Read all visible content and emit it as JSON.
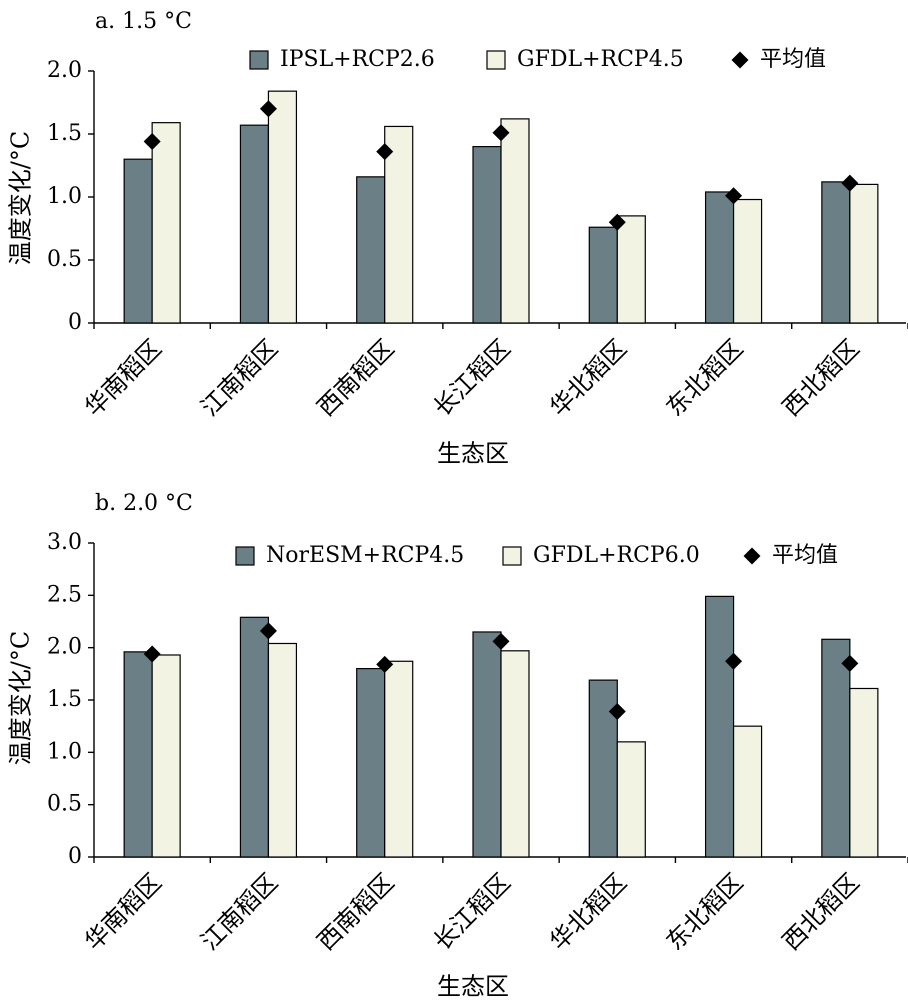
{
  "chart_data": [
    {
      "type": "bar",
      "title": "a. 1.5 °C",
      "xlabel": "生态区",
      "ylabel": "温度变化/°C",
      "ylim": [
        0,
        2.0
      ],
      "yticks": [
        0,
        0.5,
        1.0,
        1.5,
        2.0
      ],
      "ytick_labels": [
        "0",
        "0.5",
        "1.0",
        "1.5",
        "2.0"
      ],
      "categories": [
        "华南稻区",
        "江南稻区",
        "西南稻区",
        "长江稻区",
        "华北稻区",
        "东北稻区",
        "西北稻区"
      ],
      "series": [
        {
          "name": "IPSL+RCP2.6",
          "kind": "bar",
          "color": "#6b7f87",
          "values": [
            1.3,
            1.57,
            1.16,
            1.4,
            0.76,
            1.04,
            1.12
          ]
        },
        {
          "name": "GFDL+RCP4.5",
          "kind": "bar",
          "color": "#f2f3e2",
          "values": [
            1.59,
            1.84,
            1.56,
            1.62,
            0.85,
            0.98,
            1.1
          ]
        },
        {
          "name": "平均值",
          "kind": "marker",
          "marker": "diamond",
          "color": "#000000",
          "values": [
            1.44,
            1.7,
            1.36,
            1.51,
            0.8,
            1.01,
            1.11
          ]
        }
      ],
      "grid": false,
      "legend": "top"
    },
    {
      "type": "bar",
      "title": "b. 2.0 °C",
      "xlabel": "生态区",
      "ylabel": "温度变化/°C",
      "ylim": [
        0,
        3.0
      ],
      "yticks": [
        0,
        0.5,
        1.0,
        1.5,
        2.0,
        2.5,
        3.0
      ],
      "ytick_labels": [
        "0",
        "0.5",
        "1.0",
        "1.5",
        "2.0",
        "2.5",
        "3.0"
      ],
      "categories": [
        "华南稻区",
        "江南稻区",
        "西南稻区",
        "长江稻区",
        "华北稻区",
        "东北稻区",
        "西北稻区"
      ],
      "series": [
        {
          "name": "NorESM+RCP4.5",
          "kind": "bar",
          "color": "#6b7f87",
          "values": [
            1.96,
            2.29,
            1.8,
            2.15,
            1.69,
            2.49,
            2.08
          ]
        },
        {
          "name": "GFDL+RCP6.0",
          "kind": "bar",
          "color": "#f2f3e2",
          "values": [
            1.93,
            2.04,
            1.87,
            1.97,
            1.1,
            1.25,
            1.61
          ]
        },
        {
          "name": "平均值",
          "kind": "marker",
          "marker": "diamond",
          "color": "#000000",
          "values": [
            1.94,
            2.16,
            1.84,
            2.06,
            1.39,
            1.87,
            1.85
          ]
        }
      ],
      "grid": false,
      "legend": "top"
    }
  ]
}
